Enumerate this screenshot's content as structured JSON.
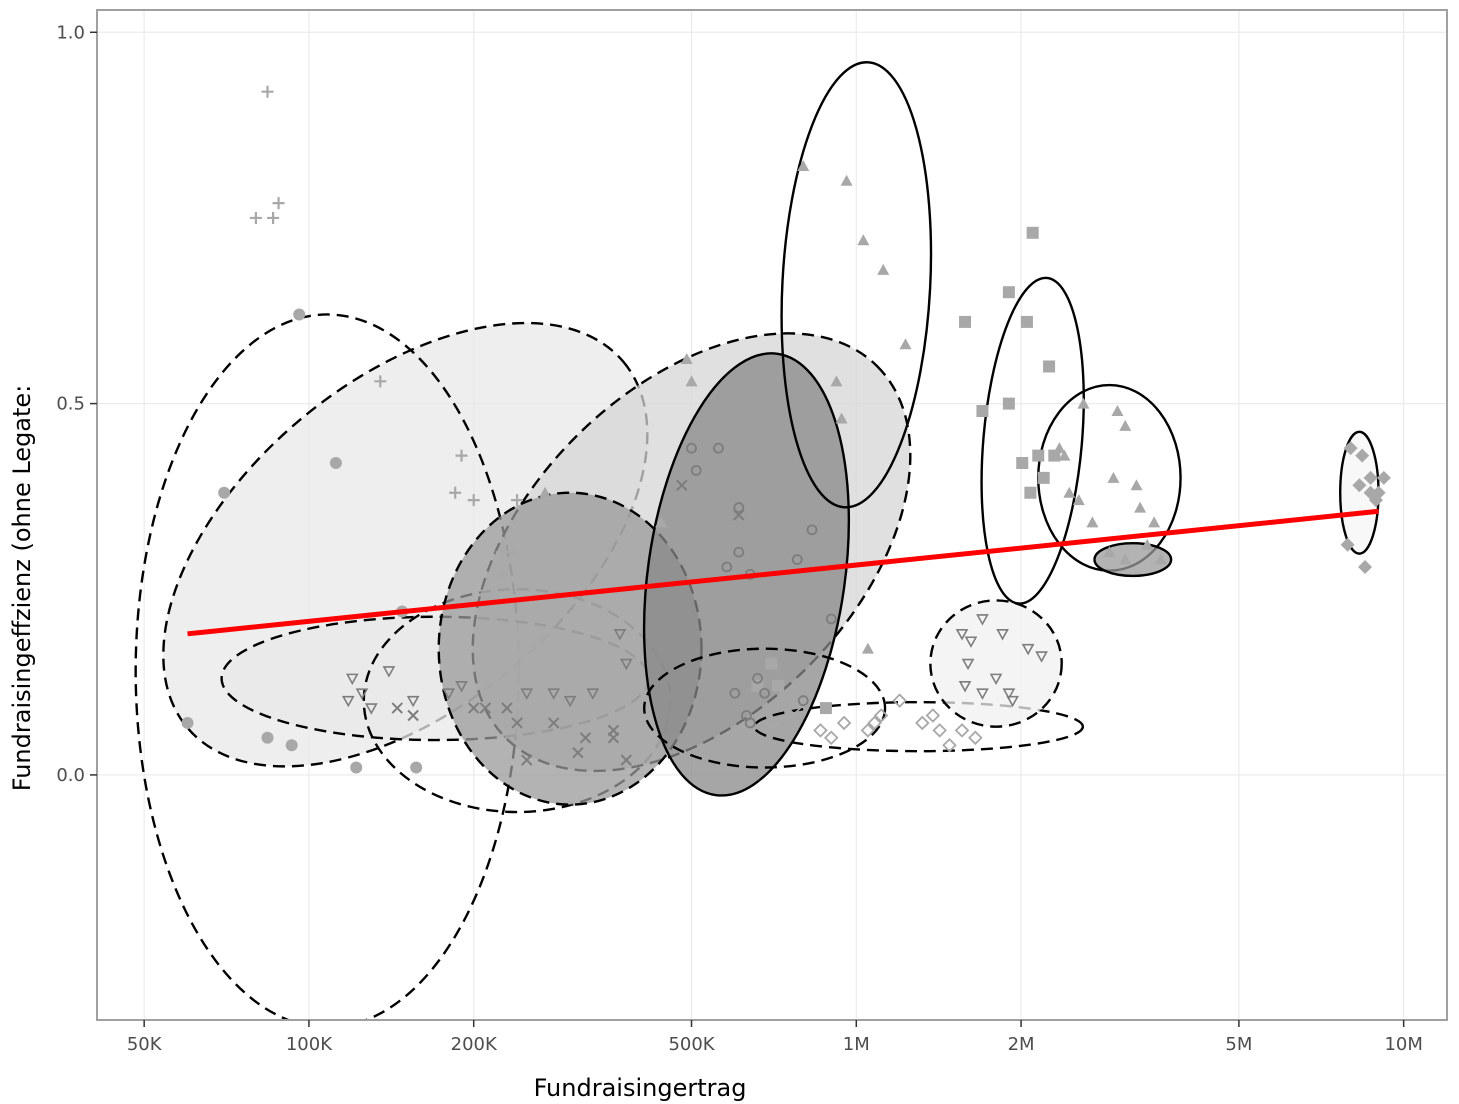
{
  "chart_data": {
    "type": "scatter",
    "title": "",
    "xlabel": "Fundraisingertrag",
    "ylabel": "Fundraisingeffzienz (ohne Legate:",
    "x_scale": "log10",
    "xlim": [
      41000,
      12000000
    ],
    "ylim": [
      -0.33,
      1.03
    ],
    "x_ticks": [
      50000,
      100000,
      200000,
      500000,
      1000000,
      2000000,
      5000000,
      10000000
    ],
    "x_tick_labels": [
      "50K",
      "100K",
      "200K",
      "500K",
      "1M",
      "2M",
      "5M",
      "10M"
    ],
    "y_ticks": [
      0.0,
      0.5,
      1.0
    ],
    "y_tick_labels": [
      "0.0",
      "0.5",
      "1.0"
    ],
    "grid": true,
    "legend": "none",
    "colors": {
      "points": "#a8a8a8",
      "points_dark": "#7d7d7d",
      "regression": "#ff0000",
      "ellipse_stroke": "#000000",
      "grid": "#ebebeb",
      "panel_border": "#a0a0a0"
    },
    "regression_line": {
      "x": [
        60000,
        9000000
      ],
      "y": [
        0.19,
        0.355
      ]
    },
    "series": [
      {
        "marker": "plus",
        "points": [
          [
            84000,
            0.92
          ],
          [
            80000,
            0.75
          ],
          [
            86000,
            0.75
          ],
          [
            88000,
            0.77
          ],
          [
            135000,
            0.53
          ],
          [
            190000,
            0.43
          ],
          [
            185000,
            0.38
          ],
          [
            200000,
            0.37
          ],
          [
            225000,
            0.3
          ],
          [
            240000,
            0.37
          ],
          [
            235000,
            0.3
          ]
        ]
      },
      {
        "marker": "circle",
        "points": [
          [
            96000,
            0.62
          ],
          [
            112000,
            0.42
          ],
          [
            70000,
            0.38
          ],
          [
            60000,
            0.07
          ],
          [
            84000,
            0.05
          ],
          [
            93000,
            0.04
          ],
          [
            122000,
            0.01
          ],
          [
            157000,
            0.01
          ],
          [
            148000,
            0.22
          ]
        ]
      },
      {
        "marker": "triangle",
        "points": [
          [
            800000,
            0.82
          ],
          [
            960000,
            0.8
          ],
          [
            1030000,
            0.72
          ],
          [
            1120000,
            0.68
          ],
          [
            1230000,
            0.58
          ],
          [
            920000,
            0.53
          ],
          [
            940000,
            0.48
          ],
          [
            1050000,
            0.17
          ],
          [
            490000,
            0.56
          ],
          [
            500000,
            0.53
          ],
          [
            270000,
            0.38
          ],
          [
            225000,
            0.27
          ],
          [
            440000,
            0.34
          ]
        ]
      },
      {
        "marker": "square",
        "points": [
          [
            2100000,
            0.73
          ],
          [
            1900000,
            0.65
          ],
          [
            2050000,
            0.61
          ],
          [
            1580000,
            0.61
          ],
          [
            2250000,
            0.55
          ],
          [
            1700000,
            0.49
          ],
          [
            1900000,
            0.5
          ],
          [
            2010000,
            0.42
          ],
          [
            2300000,
            0.43
          ],
          [
            2150000,
            0.43
          ],
          [
            2200000,
            0.4
          ],
          [
            2080000,
            0.38
          ],
          [
            700000,
            0.15
          ],
          [
            720000,
            0.12
          ],
          [
            660000,
            0.12
          ],
          [
            880000,
            0.09
          ]
        ]
      },
      {
        "marker": "triangle-filled-right",
        "points": [
          [
            2400000,
            0.43
          ],
          [
            2600000,
            0.5
          ],
          [
            2550000,
            0.37
          ],
          [
            3000000,
            0.49
          ],
          [
            3100000,
            0.47
          ],
          [
            2950000,
            0.4
          ],
          [
            3250000,
            0.39
          ],
          [
            3300000,
            0.36
          ],
          [
            3500000,
            0.34
          ],
          [
            2700000,
            0.34
          ],
          [
            3400000,
            0.31
          ],
          [
            2900000,
            0.3
          ],
          [
            3100000,
            0.29
          ],
          [
            3600000,
            0.29
          ],
          [
            2450000,
            0.38
          ],
          [
            2350000,
            0.44
          ]
        ]
      },
      {
        "marker": "circle-open",
        "points": [
          [
            500000,
            0.44
          ],
          [
            560000,
            0.44
          ],
          [
            510000,
            0.41
          ],
          [
            610000,
            0.36
          ],
          [
            830000,
            0.33
          ],
          [
            610000,
            0.3
          ],
          [
            780000,
            0.29
          ],
          [
            580000,
            0.28
          ],
          [
            640000,
            0.27
          ],
          [
            900000,
            0.21
          ],
          [
            660000,
            0.13
          ],
          [
            600000,
            0.11
          ],
          [
            680000,
            0.11
          ],
          [
            800000,
            0.1
          ],
          [
            630000,
            0.08
          ],
          [
            640000,
            0.07
          ]
        ]
      },
      {
        "marker": "triangle-down",
        "points": [
          [
            1560000,
            0.19
          ],
          [
            1620000,
            0.18
          ],
          [
            1700000,
            0.21
          ],
          [
            1850000,
            0.19
          ],
          [
            2060000,
            0.17
          ],
          [
            1600000,
            0.15
          ],
          [
            2180000,
            0.16
          ],
          [
            1580000,
            0.12
          ],
          [
            1800000,
            0.13
          ],
          [
            1700000,
            0.11
          ],
          [
            1900000,
            0.11
          ],
          [
            1930000,
            0.1
          ],
          [
            370000,
            0.19
          ],
          [
            380000,
            0.15
          ],
          [
            330000,
            0.11
          ],
          [
            300000,
            0.1
          ],
          [
            280000,
            0.11
          ],
          [
            250000,
            0.11
          ],
          [
            190000,
            0.12
          ],
          [
            180000,
            0.11
          ],
          [
            155000,
            0.1
          ],
          [
            140000,
            0.14
          ],
          [
            130000,
            0.09
          ],
          [
            125000,
            0.11
          ],
          [
            120000,
            0.13
          ],
          [
            118000,
            0.1
          ]
        ]
      },
      {
        "marker": "cross",
        "points": [
          [
            480000,
            0.39
          ],
          [
            230000,
            0.09
          ],
          [
            210000,
            0.09
          ],
          [
            200000,
            0.09
          ],
          [
            240000,
            0.07
          ],
          [
            280000,
            0.07
          ],
          [
            320000,
            0.05
          ],
          [
            360000,
            0.05
          ],
          [
            360000,
            0.06
          ],
          [
            310000,
            0.03
          ],
          [
            250000,
            0.02
          ],
          [
            380000,
            0.02
          ],
          [
            155000,
            0.08
          ],
          [
            145000,
            0.09
          ],
          [
            610000,
            0.35
          ]
        ]
      },
      {
        "marker": "diamond-open",
        "points": [
          [
            950000,
            0.07
          ],
          [
            1050000,
            0.06
          ],
          [
            1080000,
            0.07
          ],
          [
            1110000,
            0.08
          ],
          [
            1200000,
            0.1
          ],
          [
            1320000,
            0.07
          ],
          [
            1380000,
            0.08
          ],
          [
            1420000,
            0.06
          ],
          [
            1560000,
            0.06
          ],
          [
            1650000,
            0.05
          ],
          [
            1480000,
            0.04
          ],
          [
            770000,
            0.09
          ],
          [
            700000,
            0.07
          ],
          [
            860000,
            0.06
          ],
          [
            900000,
            0.05
          ]
        ]
      },
      {
        "marker": "diamond-filled",
        "points": [
          [
            8000000,
            0.44
          ],
          [
            8400000,
            0.43
          ],
          [
            8700000,
            0.4
          ],
          [
            8300000,
            0.39
          ],
          [
            9000000,
            0.38
          ],
          [
            8900000,
            0.37
          ],
          [
            7900000,
            0.31
          ],
          [
            8500000,
            0.28
          ],
          [
            8700000,
            0.38
          ],
          [
            9200000,
            0.4
          ]
        ]
      }
    ],
    "ellipses": [
      {
        "style": "dashed",
        "fill": "#e8e8e8",
        "cx": 150000,
        "cy": 0.31,
        "rx_log10": 0.52,
        "ry": 0.22,
        "angle_deg": -40
      },
      {
        "style": "dashed",
        "fill": "none",
        "cx": 108000,
        "cy": 0.14,
        "rx_log10": 0.35,
        "ry": 0.48,
        "angle_deg": 0
      },
      {
        "style": "dashed",
        "fill": "#e8e8e8",
        "cx": 170000,
        "cy": 0.13,
        "rx_log10": 0.39,
        "ry": 0.083,
        "angle_deg": 0
      },
      {
        "style": "dashed",
        "fill": "none",
        "cx": 240000,
        "cy": 0.1,
        "rx_log10": 0.28,
        "ry": 0.15,
        "angle_deg": 0
      },
      {
        "style": "dashed",
        "fill": "#d6d6d6",
        "cx": 500000,
        "cy": 0.3,
        "rx_log10": 0.48,
        "ry": 0.22,
        "angle_deg": -45
      },
      {
        "style": "dashed",
        "fill": "#999999",
        "cx": 300000,
        "cy": 0.17,
        "rx_log10": 0.24,
        "ry": 0.21,
        "angle_deg": 0
      },
      {
        "style": "solid",
        "fill": "#888888",
        "cx": 630000,
        "cy": 0.27,
        "rx_log10": 0.18,
        "ry": 0.3,
        "angle_deg": 8
      },
      {
        "style": "dashed",
        "fill": "none",
        "cx": 680000,
        "cy": 0.09,
        "rx_log10": 0.22,
        "ry": 0.08,
        "angle_deg": 0
      },
      {
        "style": "dashed",
        "fill": "none",
        "cx": 1300000,
        "cy": 0.065,
        "rx_log10": 0.3,
        "ry": 0.033,
        "angle_deg": 0
      },
      {
        "style": "dashed",
        "fill": "#f0f0f0",
        "cx": 1800000,
        "cy": 0.15,
        "rx_log10": 0.12,
        "ry": 0.085,
        "angle_deg": 0
      },
      {
        "style": "solid",
        "fill": "none",
        "cx": 1000000,
        "cy": 0.66,
        "rx_log10": 0.135,
        "ry": 0.3,
        "angle_deg": 3
      },
      {
        "style": "solid",
        "fill": "none",
        "cx": 2100000,
        "cy": 0.45,
        "rx_log10": 0.09,
        "ry": 0.22,
        "angle_deg": 5
      },
      {
        "style": "solid",
        "fill": "none",
        "cx": 2900000,
        "cy": 0.4,
        "rx_log10": 0.13,
        "ry": 0.125,
        "angle_deg": 0
      },
      {
        "style": "solid",
        "fill": "#999999",
        "cx": 3200000,
        "cy": 0.29,
        "rx_log10": 0.07,
        "ry": 0.022,
        "angle_deg": 0
      },
      {
        "style": "solid",
        "fill": "#f5f5f5",
        "cx": 8300000,
        "cy": 0.38,
        "rx_log10": 0.035,
        "ry": 0.082,
        "angle_deg": 0
      }
    ]
  }
}
